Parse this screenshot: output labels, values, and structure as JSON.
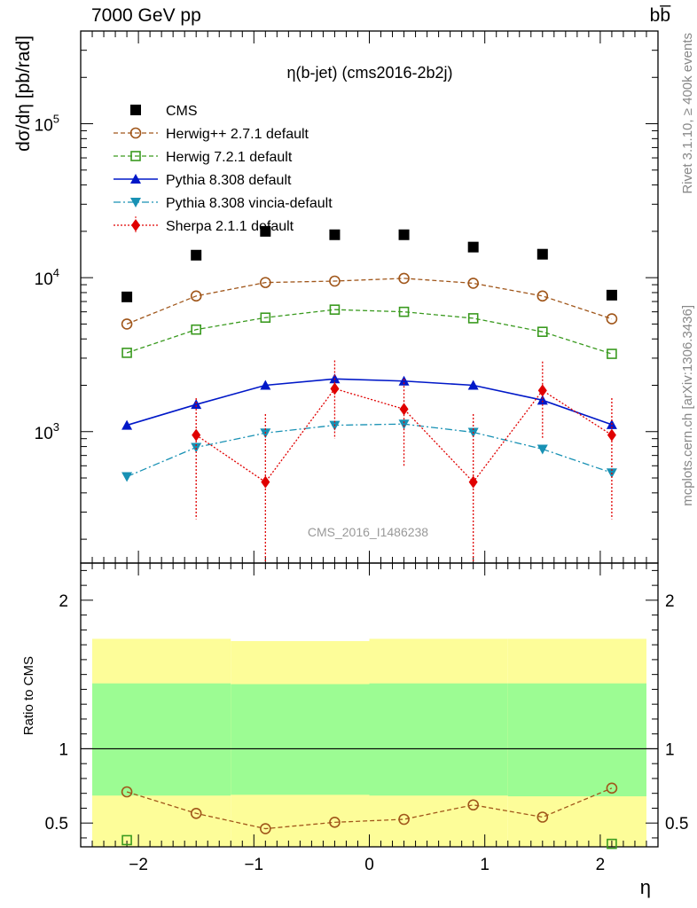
{
  "header": {
    "beam": "7000 GeV pp",
    "process": "bb̅",
    "rivet_note": "Rivet 3.1.10, ≥ 400k events",
    "mcplots_note": "mcplots.cern.ch [arXiv:1306.3436]"
  },
  "chart_data": [
    {
      "type": "scatter",
      "title": "η(b-jet) (cms2016-2b2j)",
      "ylabel": "dσ/dη [pb/rad]",
      "xlabel": "η",
      "watermark": "CMS_2016_I1486238",
      "yscale": "log",
      "xlim": [
        -2.5,
        2.5
      ],
      "ylim": [
        140,
        400000
      ],
      "x_ticks": [
        -2,
        -1,
        0,
        1,
        2
      ],
      "x_tick_labels": [
        "−2",
        "−1",
        "0",
        "1",
        "2"
      ],
      "y_ticks": [
        1000,
        10000,
        100000
      ],
      "y_tick_labels": [
        "10",
        "10",
        "10"
      ],
      "y_tick_exponents": [
        "3",
        "4",
        "5"
      ],
      "x": [
        -2.1,
        -1.5,
        -0.9,
        -0.3,
        0.3,
        0.9,
        1.5,
        2.1
      ],
      "legend_position": "top-left",
      "series": [
        {
          "name": "CMS",
          "color": "#000000",
          "marker": "square-filled",
          "line": "none",
          "values": [
            7500,
            14000,
            20000,
            19000,
            19000,
            15800,
            14200,
            7700
          ]
        },
        {
          "name": "Herwig++ 2.7.1 default",
          "color": "#a0561a",
          "marker": "circle-open",
          "line": "dashed",
          "values": [
            5000,
            7600,
            9300,
            9500,
            9900,
            9200,
            7600,
            5400
          ]
        },
        {
          "name": "Herwig 7.2.1 default",
          "color": "#3a9a1f",
          "marker": "square-open",
          "line": "dashed",
          "values": [
            3250,
            4600,
            5500,
            6200,
            6000,
            5450,
            4450,
            3200
          ]
        },
        {
          "name": "Pythia 8.308 default",
          "color": "#0018c8",
          "marker": "triangle-up",
          "line": "solid",
          "values": [
            1100,
            1500,
            2000,
            2200,
            2130,
            2000,
            1600,
            1110
          ]
        },
        {
          "name": "Pythia 8.308 vincia-default",
          "color": "#1891b4",
          "marker": "triangle-down",
          "line": "dashdot",
          "values": [
            510,
            790,
            980,
            1100,
            1120,
            990,
            770,
            540
          ]
        },
        {
          "name": "Sherpa 2.1.1 default",
          "color": "#e00000",
          "marker": "diamond",
          "line": "dotted",
          "values": [
            null,
            950,
            470,
            1900,
            1400,
            470,
            1850,
            950
          ],
          "err_low": [
            null,
            270,
            130,
            900,
            600,
            130,
            910,
            270
          ],
          "err_high": [
            null,
            1650,
            1300,
            2900,
            2200,
            1300,
            2850,
            1650
          ]
        }
      ]
    },
    {
      "type": "line",
      "ylabel": "Ratio to CMS",
      "xlabel": "η",
      "xlim": [
        -2.5,
        2.5
      ],
      "ylim": [
        0.34,
        2.25
      ],
      "y_ticks": [
        0.5,
        1,
        2
      ],
      "y_tick_labels": [
        "0.5",
        "1",
        "2"
      ],
      "x_ticks": [
        -2,
        -1,
        0,
        1,
        2
      ],
      "x_tick_labels": [
        "−2",
        "−1",
        "0",
        "1",
        "2"
      ],
      "band_edges": [
        -2.4,
        -1.2,
        0.0,
        1.2,
        2.4
      ],
      "band_inner": [
        [
          0.685,
          1.44
        ],
        [
          0.69,
          1.435
        ],
        [
          0.685,
          1.44
        ],
        [
          0.68,
          1.44
        ]
      ],
      "band_outer": [
        [
          0.34,
          1.74
        ],
        [
          0.34,
          1.725
        ],
        [
          0.34,
          1.74
        ],
        [
          0.34,
          1.74
        ]
      ],
      "band_inner_color": "#9cfc93",
      "band_outer_color": "#fdfd99",
      "x": [
        -2.1,
        -1.5,
        -0.9,
        -0.3,
        0.3,
        0.9,
        1.5,
        2.1
      ],
      "series": [
        {
          "name": "Herwig++ 2.7.1 default",
          "color": "#a0561a",
          "values": [
            0.71,
            0.565,
            0.462,
            0.505,
            0.525,
            0.622,
            0.54,
            0.735
          ]
        },
        {
          "name": "Herwig 7.2.1 default",
          "color": "#3a9a1f",
          "values": [
            0.385,
            null,
            null,
            null,
            null,
            null,
            null,
            0.36
          ]
        }
      ]
    }
  ]
}
